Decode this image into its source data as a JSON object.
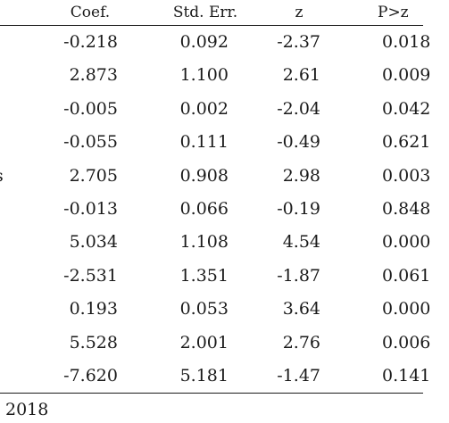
{
  "table": {
    "headers": {
      "coef": "Coef.",
      "std_err": "Std. Err.",
      "z": "z",
      "p": "P>z"
    },
    "rows": [
      {
        "label": "",
        "coef": "-0.218",
        "std_err": "0.092",
        "z": "-2.37",
        "p": "0.018"
      },
      {
        "label": "",
        "coef": "2.873",
        "std_err": "1.100",
        "z": "2.61",
        "p": "0.009"
      },
      {
        "label": "",
        "coef": "-0.005",
        "std_err": "0.002",
        "z": "-2.04",
        "p": "0.042"
      },
      {
        "label": "",
        "coef": "-0.055",
        "std_err": "0.111",
        "z": "-0.49",
        "p": "0.621"
      },
      {
        "label": "s",
        "coef": "2.705",
        "std_err": "0.908",
        "z": "2.98",
        "p": "0.003"
      },
      {
        "label": "",
        "coef": "-0.013",
        "std_err": "0.066",
        "z": "-0.19",
        "p": "0.848"
      },
      {
        "label": "",
        "coef": "5.034",
        "std_err": "1.108",
        "z": "4.54",
        "p": "0.000"
      },
      {
        "label": "",
        "coef": "-2.531",
        "std_err": "1.351",
        "z": "-1.87",
        "p": "0.061"
      },
      {
        "label": "",
        "coef": "0.193",
        "std_err": "0.053",
        "z": "3.64",
        "p": "0.000"
      },
      {
        "label": "",
        "coef": "5.528",
        "std_err": "2.001",
        "z": "2.76",
        "p": "0.006"
      },
      {
        "label": "",
        "coef": "-7.620",
        "std_err": "5.181",
        "z": "-1.47",
        "p": "0.141"
      }
    ]
  },
  "footnote": "2018"
}
